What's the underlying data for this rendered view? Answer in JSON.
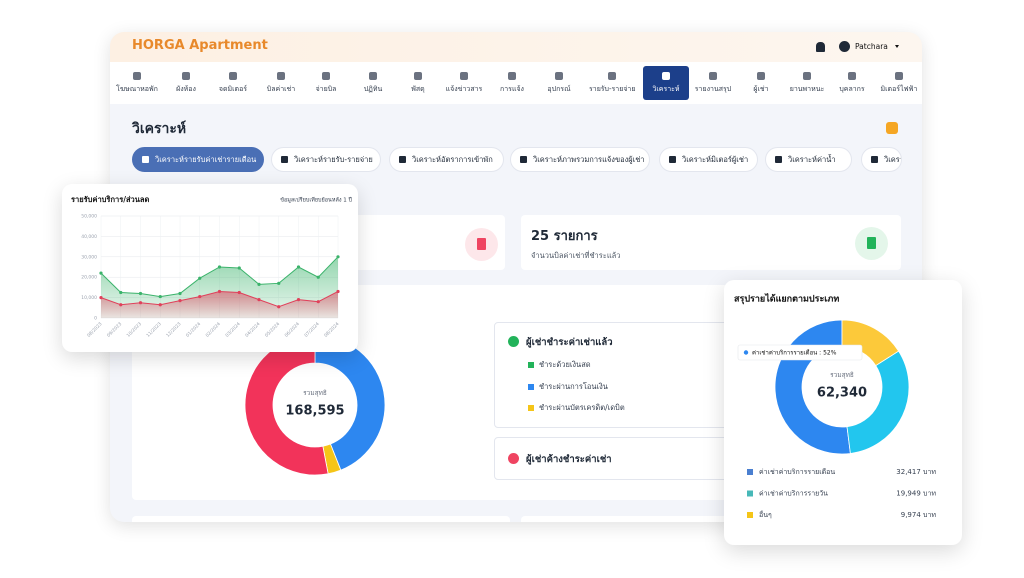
{
  "header": {
    "logo": "HORGA Apartment",
    "user": "Patchara"
  },
  "nav": [
    "โฆษณาหอพัก",
    "ผังห้อง",
    "จดมิเตอร์",
    "บิลค่าเช่า",
    "จ่ายบิล",
    "ปฏิทิน",
    "พัสดุ",
    "แจ้งข่าวสาร",
    "การแจ้ง",
    "อุปกรณ์",
    "รายรับ-รายจ่าย",
    "วิเคราะห์",
    "รายงานสรุป",
    "ผู้เช่า",
    "ยานพาหนะ",
    "บุคลากร",
    "มิเตอร์ไฟฟ้า"
  ],
  "page_title": "วิเคราะห์",
  "tabs": [
    "วิเคราะห์รายรับค่าเช่ารายเดือน",
    "วิเคราะห์รายรับ-รายจ่าย",
    "วิเคราะห์อัตราการเข้าพัก",
    "วิเคราะห์ภาพรวมการแจ้งของผู้เช่า",
    "วิเคราะห์มิเตอร์ผู้เช่า",
    "วิเคราะห์ค่าน้ำ",
    "วิเครา"
  ],
  "stat_card": {
    "value": "25 รายการ",
    "caption": "จำนวนบิลค่าเช่าที่ชำระแล้ว"
  },
  "payment_legend": {
    "paid_title": "ผู้เช่าชำระค่าเช่าแล้ว",
    "items": [
      {
        "label": "ชำระด้วยเงินสด",
        "color": "#22b35a"
      },
      {
        "label": "ชำระผ่านการโอนเงิน",
        "color": "#2d87f0"
      },
      {
        "label": "ชำระผ่านบัตรเครดิต/เดบิต",
        "color": "#f5c518"
      }
    ],
    "unpaid_title": "ผู้เช่าค้างชำระค่าเช่า"
  },
  "chart_data": [
    {
      "type": "line",
      "title": "รายรับค่าบริการ/ส่วนลด",
      "subtitle": "ข้อมูลเปรียบเทียบย้อนหลัง 1 ปี",
      "categories": [
        "08/2023",
        "09/2023",
        "10/2023",
        "11/2023",
        "12/2023",
        "01/2024",
        "02/2024",
        "03/2024",
        "04/2024",
        "05/2024",
        "06/2024",
        "07/2024",
        "08/2024"
      ],
      "ylim": [
        0,
        50000
      ],
      "yticks": [
        0,
        {
          "value": 10000,
          "label": "10,000"
        },
        {
          "value": 20000,
          "label": "20,000"
        },
        {
          "value": 30000,
          "label": "30,000"
        },
        {
          "value": 40000,
          "label": "40,000"
        },
        {
          "value": 50000,
          "label": "50,000"
        }
      ],
      "grid": true,
      "series": [
        {
          "color": "#3bb36b",
          "values": [
            22000,
            12500,
            12000,
            10500,
            12000,
            19500,
            25000,
            24500,
            16500,
            17000,
            25000,
            20000,
            30000
          ]
        },
        {
          "color": "#e0405a",
          "values": [
            10000,
            6500,
            7500,
            6500,
            8500,
            10500,
            13000,
            12500,
            9000,
            5500,
            9000,
            8000,
            13000
          ]
        }
      ]
    },
    {
      "type": "donut",
      "title": "สรุปรายได้แยกตามประเภท",
      "tooltip": "ค่าเช่าค่าบริการรายเดือน : 52%",
      "center_label": "รวมสุทธิ",
      "total": "62,340",
      "categories": [
        "ค่าเช่าค่าบริการรายเดือน",
        "ค่าเช่าค่าบริการรายวัน",
        "อื่นๆ"
      ],
      "values": [
        32417,
        19949,
        9974
      ],
      "value_labels": [
        "32,417 บาท",
        "19,949 บาท",
        "9,974 บาท"
      ],
      "colors": [
        "#2d87f0",
        "#22c6ee",
        "#fcc93a"
      ],
      "legend_colors": [
        "#4a7fd0",
        "#47b8b8",
        "#f5c518"
      ]
    },
    {
      "type": "donut",
      "center_label": "รวมสุทธิ",
      "total": "168,595",
      "values": [
        44,
        3,
        53
      ],
      "colors": [
        "#2d87f0",
        "#f5c518",
        "#f2335a"
      ]
    }
  ]
}
